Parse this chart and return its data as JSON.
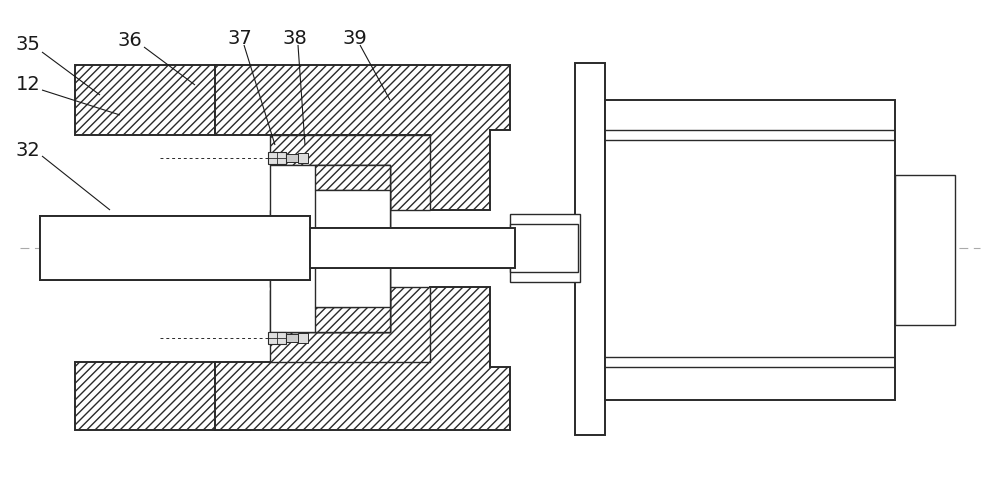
{
  "background_color": "#ffffff",
  "line_color": "#2a2a2a",
  "label_color": "#1a1a1a",
  "centerline_color": "#999999",
  "fig_width": 10.0,
  "fig_height": 5.0,
  "dpi": 100
}
